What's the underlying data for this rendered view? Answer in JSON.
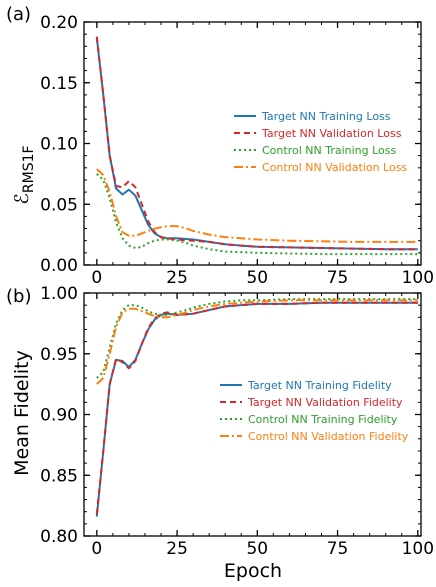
{
  "chart_data": [
    {
      "type": "line",
      "panel_label": "(a)",
      "title": "",
      "xlabel": "",
      "ylabel_main": "ℰ",
      "ylabel_sub": "RMS1F",
      "xlim": [
        -4,
        101
      ],
      "ylim": [
        0.0,
        0.2
      ],
      "xticks": [
        0,
        25,
        50,
        75,
        100
      ],
      "yticks": [
        0.0,
        0.05,
        0.1,
        0.15,
        0.2
      ],
      "ytick_labels": [
        "0.00",
        "0.05",
        "0.10",
        "0.15",
        "0.20"
      ],
      "legend_position": "center-right",
      "grid": false,
      "series": [
        {
          "name": "Target NN Training Loss",
          "color": "#1f77b4",
          "dash": "",
          "width": 2,
          "x": [
            0,
            2,
            4,
            6,
            8,
            10,
            12,
            14,
            16,
            18,
            20,
            22,
            25,
            30,
            35,
            40,
            45,
            50,
            60,
            70,
            80,
            90,
            100
          ],
          "y": [
            0.187,
            0.14,
            0.09,
            0.063,
            0.058,
            0.062,
            0.057,
            0.045,
            0.033,
            0.026,
            0.023,
            0.022,
            0.022,
            0.021,
            0.019,
            0.017,
            0.016,
            0.015,
            0.0145,
            0.014,
            0.0135,
            0.013,
            0.013
          ]
        },
        {
          "name": "Target NN Validation Loss",
          "color": "#d62728",
          "dash": "6,4",
          "width": 2,
          "x": [
            0,
            2,
            4,
            6,
            8,
            10,
            12,
            14,
            16,
            18,
            20,
            22,
            25,
            30,
            35,
            40,
            45,
            50,
            60,
            70,
            80,
            90,
            100
          ],
          "y": [
            0.188,
            0.14,
            0.09,
            0.065,
            0.064,
            0.069,
            0.064,
            0.05,
            0.036,
            0.027,
            0.023,
            0.022,
            0.021,
            0.02,
            0.019,
            0.017,
            0.016,
            0.015,
            0.0145,
            0.014,
            0.0135,
            0.013,
            0.013
          ]
        },
        {
          "name": "Control NN Training Loss",
          "color": "#2ca02c",
          "dash": "2,3",
          "width": 2,
          "x": [
            0,
            2,
            4,
            6,
            8,
            10,
            12,
            14,
            16,
            18,
            20,
            22,
            25,
            28,
            30,
            35,
            40,
            45,
            50,
            60,
            70,
            80,
            90,
            100
          ],
          "y": [
            0.075,
            0.07,
            0.055,
            0.035,
            0.022,
            0.016,
            0.014,
            0.015,
            0.018,
            0.02,
            0.021,
            0.021,
            0.02,
            0.018,
            0.016,
            0.013,
            0.011,
            0.0105,
            0.01,
            0.0095,
            0.009,
            0.009,
            0.009,
            0.009
          ]
        },
        {
          "name": "Control NN Validation Loss",
          "color": "#ff7f0e",
          "dash": "9,3,2,3",
          "width": 2,
          "x": [
            0,
            2,
            4,
            6,
            8,
            10,
            12,
            14,
            16,
            18,
            20,
            22,
            25,
            28,
            30,
            35,
            40,
            45,
            50,
            60,
            70,
            80,
            90,
            100
          ],
          "y": [
            0.079,
            0.074,
            0.06,
            0.04,
            0.027,
            0.024,
            0.024,
            0.026,
            0.028,
            0.03,
            0.031,
            0.032,
            0.032,
            0.03,
            0.028,
            0.025,
            0.023,
            0.022,
            0.021,
            0.02,
            0.0195,
            0.019,
            0.019,
            0.019
          ]
        }
      ]
    },
    {
      "type": "line",
      "panel_label": "(b)",
      "title": "",
      "xlabel": "Epoch",
      "ylabel": "Mean Fidelity",
      "xlim": [
        -4,
        101
      ],
      "ylim": [
        0.8,
        1.0
      ],
      "xticks": [
        0,
        25,
        50,
        75,
        100
      ],
      "yticks": [
        0.8,
        0.85,
        0.9,
        0.95,
        1.0
      ],
      "ytick_labels": [
        "0.80",
        "0.85",
        "0.90",
        "0.95",
        "1.00"
      ],
      "legend_position": "center-right",
      "grid": false,
      "series": [
        {
          "name": "Target NN Training Fidelity",
          "color": "#1f77b4",
          "dash": "",
          "width": 2,
          "x": [
            0,
            2,
            4,
            6,
            8,
            10,
            12,
            14,
            16,
            18,
            20,
            22,
            25,
            30,
            35,
            40,
            45,
            50,
            60,
            70,
            80,
            90,
            100
          ],
          "y": [
            0.816,
            0.87,
            0.925,
            0.945,
            0.944,
            0.939,
            0.945,
            0.958,
            0.97,
            0.978,
            0.982,
            0.983,
            0.982,
            0.983,
            0.986,
            0.989,
            0.99,
            0.991,
            0.991,
            0.992,
            0.992,
            0.992,
            0.992
          ]
        },
        {
          "name": "Target NN Validation Fidelity",
          "color": "#d62728",
          "dash": "6,4",
          "width": 2,
          "x": [
            0,
            2,
            4,
            6,
            8,
            10,
            12,
            14,
            16,
            18,
            20,
            22,
            25,
            30,
            35,
            40,
            45,
            50,
            60,
            70,
            80,
            90,
            100
          ],
          "y": [
            0.818,
            0.87,
            0.925,
            0.946,
            0.943,
            0.938,
            0.944,
            0.958,
            0.971,
            0.979,
            0.983,
            0.984,
            0.982,
            0.983,
            0.986,
            0.989,
            0.99,
            0.991,
            0.991,
            0.992,
            0.992,
            0.992,
            0.992
          ]
        },
        {
          "name": "Control NN Training Fidelity",
          "color": "#2ca02c",
          "dash": "2,3",
          "width": 2,
          "x": [
            0,
            2,
            4,
            6,
            8,
            10,
            12,
            14,
            16,
            18,
            20,
            22,
            25,
            28,
            30,
            35,
            40,
            45,
            50,
            60,
            70,
            80,
            90,
            100
          ],
          "y": [
            0.93,
            0.935,
            0.955,
            0.975,
            0.986,
            0.99,
            0.99,
            0.988,
            0.985,
            0.983,
            0.982,
            0.982,
            0.984,
            0.986,
            0.988,
            0.991,
            0.993,
            0.994,
            0.994,
            0.995,
            0.995,
            0.995,
            0.995,
            0.995
          ]
        },
        {
          "name": "Control NN Validation Fidelity",
          "color": "#ff7f0e",
          "dash": "9,3,2,3",
          "width": 2,
          "x": [
            0,
            2,
            4,
            6,
            8,
            10,
            12,
            14,
            16,
            18,
            20,
            22,
            25,
            28,
            30,
            35,
            40,
            45,
            50,
            60,
            70,
            80,
            90,
            100
          ],
          "y": [
            0.925,
            0.93,
            0.95,
            0.972,
            0.984,
            0.987,
            0.987,
            0.985,
            0.983,
            0.981,
            0.98,
            0.98,
            0.982,
            0.984,
            0.986,
            0.989,
            0.991,
            0.992,
            0.993,
            0.994,
            0.994,
            0.994,
            0.994,
            0.994
          ]
        }
      ]
    }
  ]
}
